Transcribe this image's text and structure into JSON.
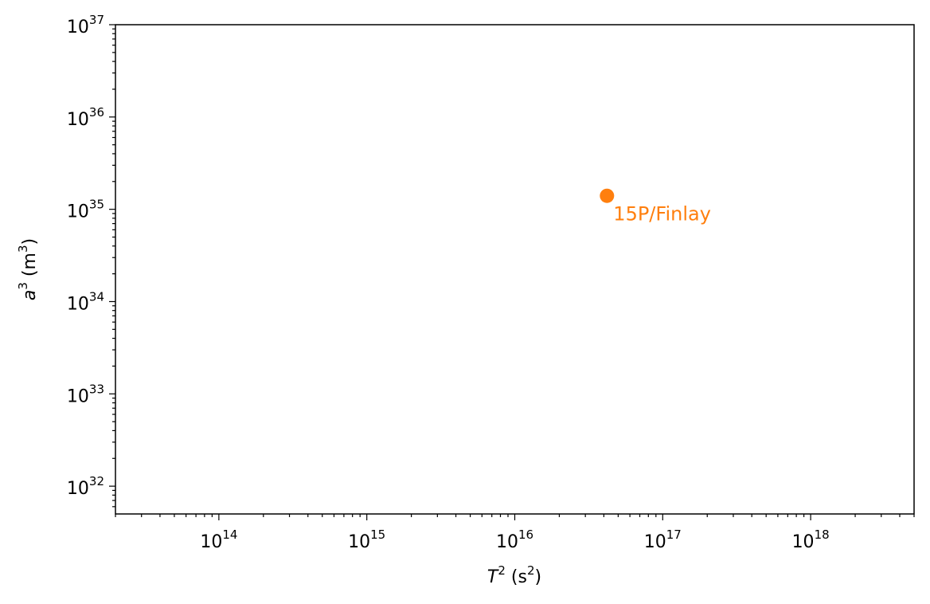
{
  "chart_data": {
    "type": "scatter",
    "xlabel": {
      "var": "T",
      "sup": "2",
      "unit_base": "s",
      "unit_sup": "2"
    },
    "ylabel": {
      "var": "a",
      "sup": "3",
      "unit_base": "m",
      "unit_sup": "3"
    },
    "x_scale": "log",
    "y_scale": "log",
    "xlim": [
      20000000000000.0,
      5e+18
    ],
    "ylim": [
      5e+31,
      1e+37
    ],
    "x_ticks": [
      {
        "base": "10",
        "exp": "14",
        "value": 100000000000000.0
      },
      {
        "base": "10",
        "exp": "15",
        "value": 1000000000000000.0
      },
      {
        "base": "10",
        "exp": "16",
        "value": 1e+16
      },
      {
        "base": "10",
        "exp": "17",
        "value": 1e+17
      },
      {
        "base": "10",
        "exp": "18",
        "value": 1e+18
      }
    ],
    "y_ticks": [
      {
        "base": "10",
        "exp": "32",
        "value": 1e+32
      },
      {
        "base": "10",
        "exp": "33",
        "value": 1e+33
      },
      {
        "base": "10",
        "exp": "34",
        "value": 1e+34
      },
      {
        "base": "10",
        "exp": "35",
        "value": 1e+35
      },
      {
        "base": "10",
        "exp": "36",
        "value": 1e+36
      },
      {
        "base": "10",
        "exp": "37",
        "value": 1e+37
      }
    ],
    "grid": false,
    "points": [
      {
        "label": "15P/Finlay",
        "x": 4.2e+16,
        "y": 1.4e+35,
        "color": "#ff7f0e"
      }
    ]
  }
}
